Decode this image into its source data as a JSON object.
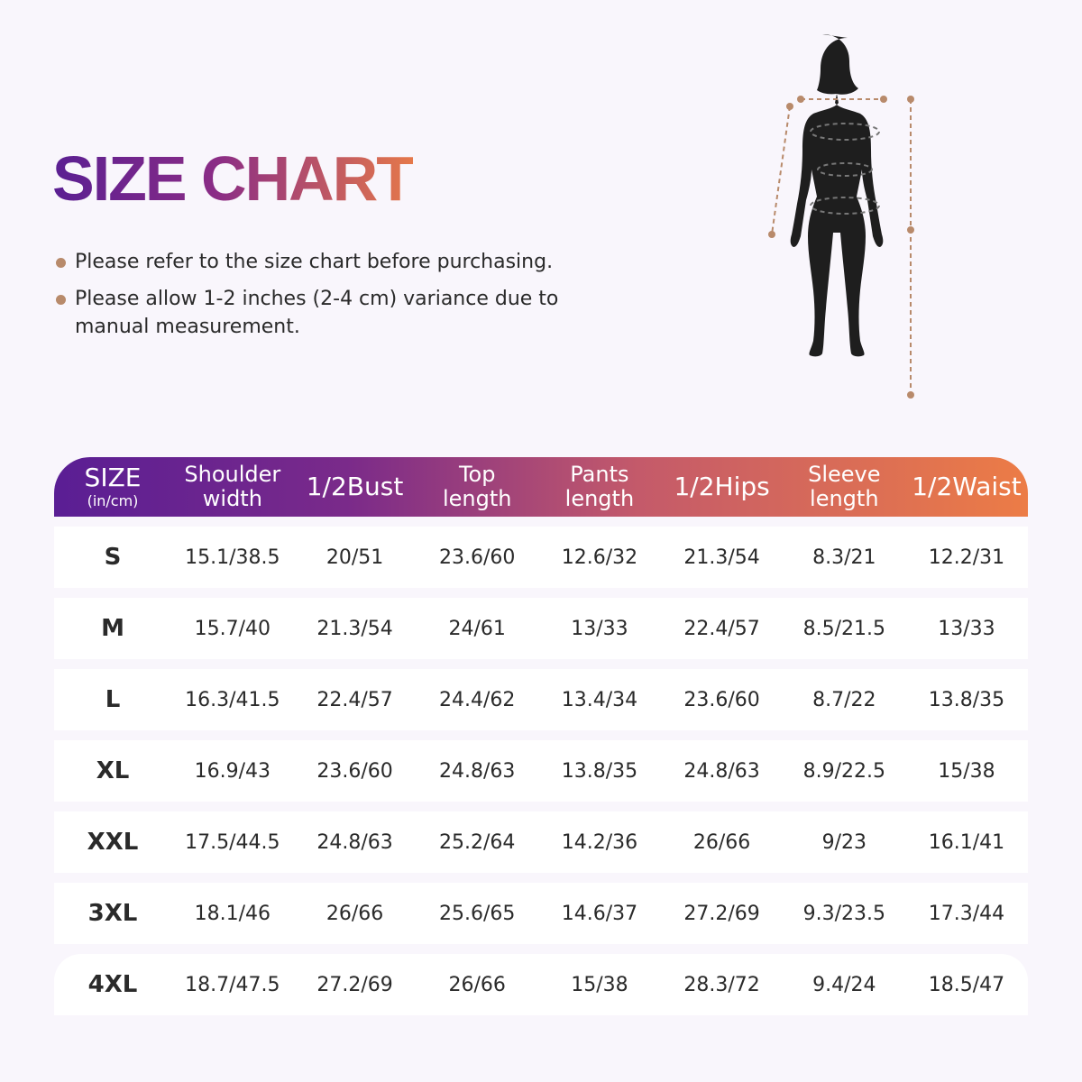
{
  "title": "SIZE CHART",
  "notes": [
    "Please refer to the size chart before purchasing.",
    "Please allow 1-2 inches (2-4 cm) variance due to manual measurement."
  ],
  "colors": {
    "gradient_start": "#5a1e94",
    "gradient_end": "#ec7c46",
    "bullet": "#b88a6b",
    "silhouette": "#1e1e1e"
  },
  "figure_icon": "woman-silhouette-measurement",
  "table": {
    "headers": [
      {
        "label": "SIZE",
        "sub": "(in/cm)"
      },
      {
        "label": "Shoulder width"
      },
      {
        "label": "1/2Bust"
      },
      {
        "label": "Top length"
      },
      {
        "label": "Pants length"
      },
      {
        "label": "1/2Hips"
      },
      {
        "label": "Sleeve length"
      },
      {
        "label": "1/2Waist"
      }
    ],
    "rows": [
      [
        "S",
        "15.1/38.5",
        "20/51",
        "23.6/60",
        "12.6/32",
        "21.3/54",
        "8.3/21",
        "12.2/31"
      ],
      [
        "M",
        "15.7/40",
        "21.3/54",
        "24/61",
        "13/33",
        "22.4/57",
        "8.5/21.5",
        "13/33"
      ],
      [
        "L",
        "16.3/41.5",
        "22.4/57",
        "24.4/62",
        "13.4/34",
        "23.6/60",
        "8.7/22",
        "13.8/35"
      ],
      [
        "XL",
        "16.9/43",
        "23.6/60",
        "24.8/63",
        "13.8/35",
        "24.8/63",
        "8.9/22.5",
        "15/38"
      ],
      [
        "XXL",
        "17.5/44.5",
        "24.8/63",
        "25.2/64",
        "14.2/36",
        "26/66",
        "9/23",
        "16.1/41"
      ],
      [
        "3XL",
        "18.1/46",
        "26/66",
        "25.6/65",
        "14.6/37",
        "27.2/69",
        "9.3/23.5",
        "17.3/44"
      ],
      [
        "4XL",
        "18.7/47.5",
        "27.2/69",
        "26/66",
        "15/38",
        "28.3/72",
        "9.4/24",
        "18.5/47"
      ]
    ]
  }
}
